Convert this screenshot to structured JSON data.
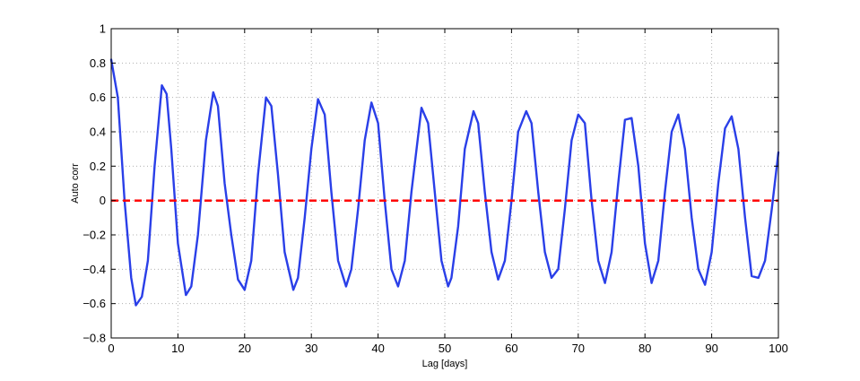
{
  "chart_data": {
    "type": "line",
    "title": "",
    "xlabel": "Lag [days]",
    "ylabel": "Auto corr",
    "xlim": [
      0,
      100
    ],
    "ylim": [
      -0.8,
      1
    ],
    "xticks": [
      0,
      10,
      20,
      30,
      40,
      50,
      60,
      70,
      80,
      90,
      100
    ],
    "yticks": [
      -0.8,
      -0.6,
      -0.4,
      -0.2,
      0,
      0.2,
      0.4,
      0.6,
      0.8,
      1
    ],
    "xtick_labels": [
      "0",
      "10",
      "20",
      "30",
      "40",
      "50",
      "60",
      "70",
      "80",
      "90",
      "100"
    ],
    "ytick_labels": [
      "−0.8",
      "−0.6",
      "−0.4",
      "−0.2",
      "0",
      "0.2",
      "0.4",
      "0.6",
      "0.8",
      "1"
    ],
    "grid": true,
    "series": [
      {
        "color": "#2a3fe8",
        "style": "solid",
        "x": [
          0,
          1.0,
          2.0,
          3.0,
          3.7,
          4.6,
          5.5,
          6.5,
          7.6,
          8.3,
          9.0,
          10.0,
          11.2,
          12.0,
          13.0,
          14.2,
          15.3,
          16.0,
          17.0,
          18.0,
          19.0,
          20.0,
          21.0,
          22.0,
          23.2,
          24.0,
          25.0,
          26.0,
          27.3,
          28.0,
          29.0,
          30.0,
          31.0,
          32.0,
          33.0,
          34.0,
          35.2,
          36.0,
          37.0,
          38.0,
          39.0,
          40.0,
          41.0,
          42.0,
          43.0,
          44.0,
          45.0,
          46.5,
          47.5,
          48.5,
          49.5,
          50.5,
          51.0,
          52.0,
          53.0,
          54.3,
          55.0,
          56.0,
          57.0,
          58.0,
          59.0,
          60.0,
          61.0,
          62.2,
          63.0,
          64.0,
          65.0,
          66.0,
          67.0,
          68.0,
          69.0,
          70.0,
          71.0,
          72.0,
          73.0,
          74.0,
          75.0,
          76.0,
          77.0,
          78.0,
          79.0,
          80.0,
          81.0,
          82.0,
          83.0,
          84.0,
          85.0,
          86.0,
          87.0,
          88.0,
          89.0,
          90.0,
          91.0,
          92.0,
          93.0,
          94.0,
          95.0,
          96.0,
          97.0,
          98.0,
          99.0,
          100.0
        ],
        "y": [
          0.82,
          0.6,
          0.0,
          -0.45,
          -0.61,
          -0.56,
          -0.35,
          0.2,
          0.67,
          0.62,
          0.3,
          -0.25,
          -0.55,
          -0.5,
          -0.2,
          0.35,
          0.63,
          0.55,
          0.1,
          -0.2,
          -0.46,
          -0.52,
          -0.35,
          0.15,
          0.6,
          0.55,
          0.15,
          -0.3,
          -0.52,
          -0.45,
          -0.1,
          0.3,
          0.59,
          0.5,
          0.05,
          -0.35,
          -0.5,
          -0.4,
          -0.05,
          0.35,
          0.57,
          0.45,
          0.0,
          -0.4,
          -0.5,
          -0.35,
          0.05,
          0.54,
          0.45,
          0.05,
          -0.35,
          -0.5,
          -0.45,
          -0.15,
          0.3,
          0.52,
          0.45,
          0.05,
          -0.3,
          -0.46,
          -0.35,
          0.0,
          0.4,
          0.52,
          0.45,
          0.05,
          -0.3,
          -0.45,
          -0.4,
          -0.05,
          0.35,
          0.5,
          0.45,
          0.0,
          -0.35,
          -0.48,
          -0.3,
          0.1,
          0.47,
          0.48,
          0.2,
          -0.25,
          -0.48,
          -0.35,
          0.05,
          0.4,
          0.5,
          0.3,
          -0.1,
          -0.4,
          -0.49,
          -0.3,
          0.1,
          0.42,
          0.49,
          0.3,
          -0.1,
          -0.44,
          -0.45,
          -0.35,
          -0.05,
          0.28
        ]
      },
      {
        "color": "#ff0000",
        "style": "dashed",
        "x": [
          0,
          100
        ],
        "y": [
          0,
          0
        ]
      }
    ]
  }
}
